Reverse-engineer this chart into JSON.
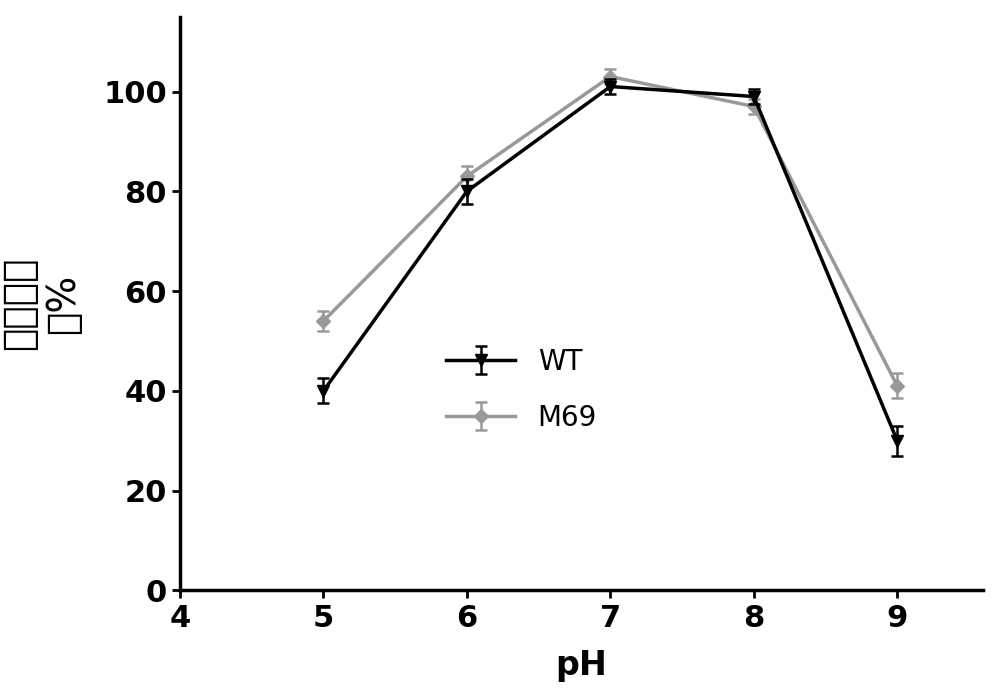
{
  "x": [
    5,
    6,
    7,
    8,
    9
  ],
  "WT_y": [
    40,
    80,
    101,
    99,
    30
  ],
  "WT_yerr": [
    2.5,
    2.5,
    1.5,
    1.5,
    3.0
  ],
  "M69_y": [
    54,
    83,
    103,
    97,
    41
  ],
  "M69_yerr": [
    2.0,
    2.0,
    1.5,
    1.5,
    2.5
  ],
  "WT_color": "#000000",
  "M69_color": "#999999",
  "xlabel": "pH",
  "ylabel_line1": "相对酶活",
  "ylabel_line2": "／%",
  "xlim": [
    4,
    9.6
  ],
  "ylim": [
    0,
    115
  ],
  "yticks": [
    0,
    20,
    40,
    60,
    80,
    100
  ],
  "xticks": [
    4,
    5,
    6,
    7,
    8,
    9
  ],
  "background_color": "#ffffff",
  "linewidth": 2.5,
  "markersize": 9,
  "capsize": 4,
  "xlabel_fontsize": 24,
  "ylabel_fontsize": 28,
  "tick_fontsize": 22,
  "legend_fontsize": 20
}
